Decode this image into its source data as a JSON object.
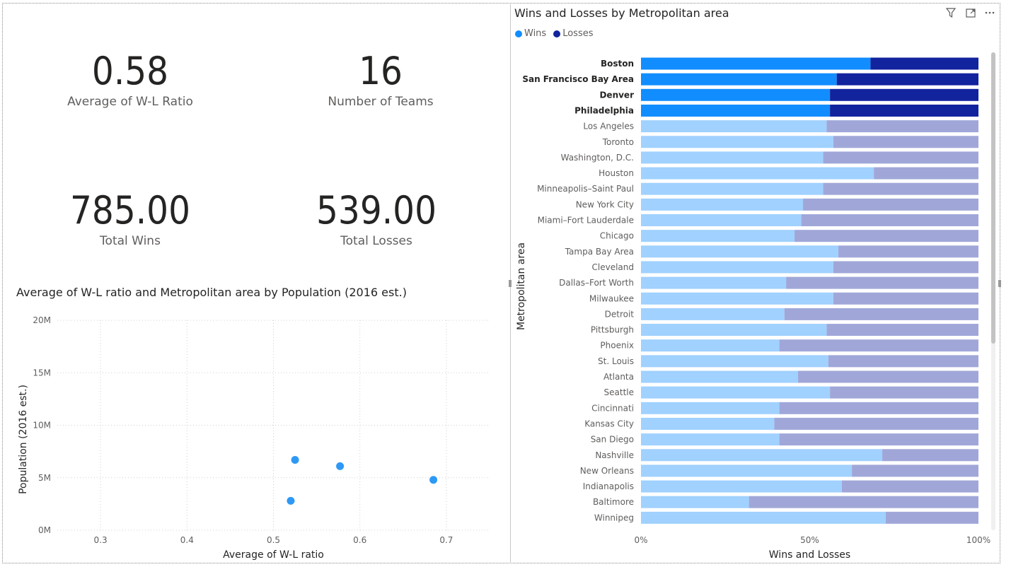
{
  "cards": [
    {
      "value": "0.58",
      "label": "Average of W-L Ratio"
    },
    {
      "value": "16",
      "label": "Number of Teams"
    },
    {
      "value": "785.00",
      "label": "Total Wins"
    },
    {
      "value": "539.00",
      "label": "Total Losses"
    }
  ],
  "scatter": {
    "title": "Average of W-L ratio and Metropolitan area by Population (2016 est.)"
  },
  "bars": {
    "title": "Wins and Losses by Metropolitan area",
    "legend": [
      {
        "name": "Wins",
        "color": "#118dff"
      },
      {
        "name": "Losses",
        "color": "#12239e"
      }
    ],
    "icons": [
      "filter-icon",
      "focus-mode-icon",
      "more-options-icon"
    ]
  },
  "colors": {
    "wins": "#118dff",
    "losses": "#12239e",
    "wins_dim": "#a0d1ff",
    "losses_dim": "#a0a7d8",
    "point": "#2e99f5"
  },
  "chart_data": [
    {
      "type": "scatter",
      "title": "Average of W-L ratio and Metropolitan area by Population (2016 est.)",
      "xlabel": "Average of W-L ratio",
      "ylabel": "Population (2016 est.)",
      "xlim": [
        0.25,
        0.75
      ],
      "ylim": [
        0,
        20000000
      ],
      "x_ticks": [
        "0.3",
        "0.4",
        "0.5",
        "0.6",
        "0.7"
      ],
      "x_tick_values": [
        0.3,
        0.4,
        0.5,
        0.6,
        0.7
      ],
      "y_ticks": [
        "0M",
        "5M",
        "10M",
        "15M",
        "20M"
      ],
      "y_tick_values": [
        0,
        5000000,
        10000000,
        15000000,
        20000000
      ],
      "grid": true,
      "points": [
        {
          "x": 0.525,
          "y": 6700000
        },
        {
          "x": 0.577,
          "y": 6100000
        },
        {
          "x": 0.685,
          "y": 4800000
        },
        {
          "x": 0.52,
          "y": 2800000
        }
      ]
    },
    {
      "type": "bar",
      "orientation": "horizontal",
      "stacked": "100%",
      "title": "Wins and Losses by Metropolitan area",
      "xlabel": "Wins and Losses",
      "ylabel": "Metropolitan area",
      "x_ticks": [
        "0%",
        "50%",
        "100%"
      ],
      "x_tick_values": [
        0,
        0.5,
        1
      ],
      "categories": [
        "Boston",
        "San Francisco Bay Area",
        "Denver",
        "Philadelphia",
        "Los Angeles",
        "Toronto",
        "Washington, D.C.",
        "Houston",
        "Minneapolis–Saint Paul",
        "New York City",
        "Miami–Fort Lauderdale",
        "Chicago",
        "Tampa Bay Area",
        "Cleveland",
        "Dallas–Fort Worth",
        "Milwaukee",
        "Detroit",
        "Pittsburgh",
        "Phoenix",
        "St. Louis",
        "Atlanta",
        "Seattle",
        "Cincinnati",
        "Kansas City",
        "San Diego",
        "Nashville",
        "New Orleans",
        "Indianapolis",
        "Baltimore",
        "Winnipeg"
      ],
      "highlighted": [
        "Boston",
        "San Francisco Bay Area",
        "Denver",
        "Philadelphia"
      ],
      "series": [
        {
          "name": "Wins",
          "values": [
            0.68,
            0.58,
            0.56,
            0.56,
            0.55,
            0.57,
            0.54,
            0.69,
            0.54,
            0.48,
            0.475,
            0.455,
            0.585,
            0.57,
            0.43,
            0.57,
            0.425,
            0.55,
            0.41,
            0.555,
            0.465,
            0.56,
            0.41,
            0.395,
            0.41,
            0.715,
            0.625,
            0.595,
            0.32,
            0.725
          ]
        },
        {
          "name": "Losses",
          "values": [
            0.32,
            0.42,
            0.44,
            0.44,
            0.45,
            0.43,
            0.46,
            0.31,
            0.46,
            0.52,
            0.525,
            0.545,
            0.415,
            0.43,
            0.57,
            0.43,
            0.575,
            0.45,
            0.59,
            0.445,
            0.535,
            0.44,
            0.59,
            0.605,
            0.59,
            0.285,
            0.375,
            0.405,
            0.68,
            0.275
          ]
        }
      ]
    }
  ]
}
